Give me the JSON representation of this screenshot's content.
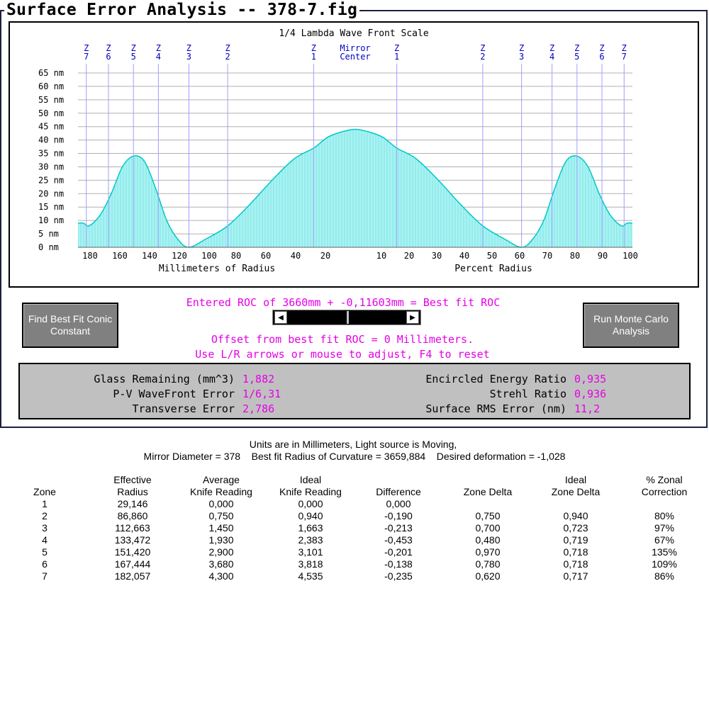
{
  "window": {
    "title": "Surface Error Analysis -- 378-7.fig"
  },
  "chart_data": {
    "type": "area",
    "title": "1/4 Lambda Wave Front Scale",
    "y_tick_labels": [
      "65 nm",
      "60 nm",
      "55 nm",
      "50 nm",
      "45 nm",
      "40 nm",
      "35 nm",
      "30 nm",
      "25 nm",
      "20 nm",
      "15 nm",
      "10 nm",
      "5 nm",
      "0 nm"
    ],
    "ylim": [
      0,
      65
    ],
    "y_unit": "nm",
    "x_tick_labels_left": [
      "180",
      "160",
      "140",
      "120",
      "100",
      "80",
      "60",
      "40",
      "20"
    ],
    "x_tick_labels_right": [
      "10",
      "20",
      "30",
      "40",
      "50",
      "60",
      "70",
      "80",
      "90",
      "100"
    ],
    "xlabel_left": "Millimeters of Radius",
    "xlabel_right": "Percent Radius",
    "center_label": [
      "Mirror",
      "Center"
    ],
    "zone_labels_left": [
      "Z 7",
      "Z 6",
      "Z 5",
      "Z 4",
      "Z 3",
      "Z 2",
      "Z 1"
    ],
    "zone_labels_right": [
      "Z 1",
      "Z 2",
      "Z 3",
      "Z 4",
      "Z 5",
      "Z 6",
      "Z 7"
    ],
    "profile": {
      "x_percent_radius": [
        100,
        98,
        96,
        92,
        88,
        84,
        80,
        76,
        72,
        68,
        64,
        60,
        54,
        46,
        38,
        30,
        22,
        15,
        10,
        5,
        0
      ],
      "y_nm": [
        9,
        9,
        8,
        12,
        20,
        30,
        34,
        32,
        22,
        10,
        3,
        0,
        3,
        8,
        16,
        25,
        33,
        37,
        41,
        43,
        44
      ]
    },
    "grid": true,
    "colors": {
      "fill": "#aaf2f2",
      "curve": "#00c8c8",
      "zone_lines": "#0000ff",
      "ticks": "#000080",
      "grid": "#b0b0b0"
    }
  },
  "controls": {
    "find_best_fit": "Find Best Fit Conic Constant",
    "run_monte_carlo": "Run Monte Carlo Analysis",
    "roc_text": "Entered ROC of 3660mm + -0,11603mm = Best fit ROC",
    "offset_text": "Offset from best fit ROC = 0 Millimeters.",
    "hint_text": "Use L/R arrows or mouse to adjust, F4 to reset",
    "slider_left_icon": "arrow-left-icon",
    "slider_right_icon": "arrow-right-icon"
  },
  "stats": {
    "glass_remaining_label": "Glass Remaining (mm^3)",
    "glass_remaining": "1,882",
    "pv_label": "P-V WaveFront Error",
    "pv": "1/6,31",
    "transverse_label": "Transverse Error",
    "transverse": "2,786",
    "encircled_label": "Encircled Energy Ratio",
    "encircled": "0,935",
    "strehl_label": "Strehl Ratio",
    "strehl": "0,936",
    "rms_label": "Surface RMS Error (nm)",
    "rms": "11,2"
  },
  "report": {
    "line1": "Units are in Millimeters, Light source is Moving,",
    "line2": "Mirror Diameter = 378    Best fit Radius of Curvature = 3659,884    Desired deformation = -1,028",
    "headers": [
      [
        "",
        "Zone"
      ],
      [
        "Effective",
        "Radius"
      ],
      [
        "Average",
        "Knife Reading"
      ],
      [
        "Ideal",
        "Knife Reading"
      ],
      [
        "",
        "Difference"
      ],
      [
        "",
        "Zone Delta"
      ],
      [
        "Ideal",
        "Zone Delta"
      ],
      [
        "% Zonal",
        "Correction"
      ]
    ],
    "rows": [
      [
        "1",
        "29,146",
        "0,000",
        "0,000",
        "0,000",
        "",
        "",
        ""
      ],
      [
        "2",
        "86,860",
        "0,750",
        "0,940",
        "-0,190",
        "0,750",
        "0,940",
        "80%"
      ],
      [
        "3",
        "112,663",
        "1,450",
        "1,663",
        "-0,213",
        "0,700",
        "0,723",
        "97%"
      ],
      [
        "4",
        "133,472",
        "1,930",
        "2,383",
        "-0,453",
        "0,480",
        "0,719",
        "67%"
      ],
      [
        "5",
        "151,420",
        "2,900",
        "3,101",
        "-0,201",
        "0,970",
        "0,718",
        "135%"
      ],
      [
        "6",
        "167,444",
        "3,680",
        "3,818",
        "-0,138",
        "0,780",
        "0,718",
        "109%"
      ],
      [
        "7",
        "182,057",
        "4,300",
        "4,535",
        "-0,235",
        "0,620",
        "0,717",
        "86%"
      ]
    ]
  }
}
